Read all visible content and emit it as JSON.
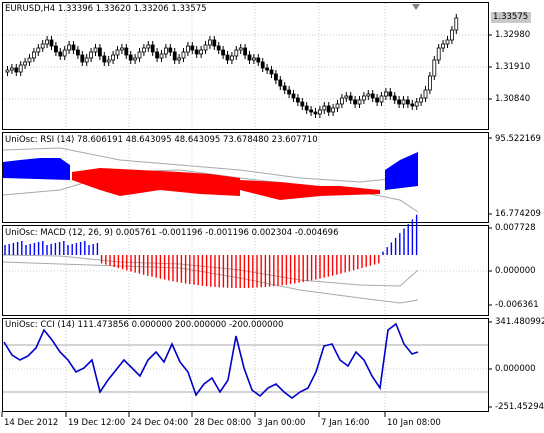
{
  "main": {
    "title": "EURUSD,H4  1.33396 1.33620 1.33206 1.33575",
    "price_tag": "1.33575",
    "y_labels": [
      "1.32980",
      "1.31910",
      "1.30840"
    ]
  },
  "rsi": {
    "title": "UniOsc: RSI (14) 78.606191 48.643095 48.643095 73.678480 23.607710",
    "y_labels": [
      "95.522169",
      "16.774209"
    ]
  },
  "macd": {
    "title": "UniOsc: MACD (12, 26, 9) 0.005761 -0.001196 -0.001196 0.002304 -0.004696",
    "y_labels": [
      "0.007728",
      "0.000000",
      "-0.006361"
    ]
  },
  "cci": {
    "title": "UniOsc: CCI (14) 111.473856 0.000000 200.000000 -200.000000",
    "y_labels": [
      "341.480992",
      "0.000000",
      "-251.45294"
    ]
  },
  "x_labels": [
    "14 Dec 2012",
    "19 Dec 12:00",
    "24 Dec 04:00",
    "28 Dec 08:00",
    "3 Jan 00:00",
    "7 Jan 16:00",
    "10 Jan 08:00"
  ],
  "colors": {
    "up": "#0000ff",
    "down": "#ff0000",
    "line": "#0000cc",
    "band": "#a9a9a9",
    "grid": "#c8c8c8",
    "frame": "#000000"
  }
}
